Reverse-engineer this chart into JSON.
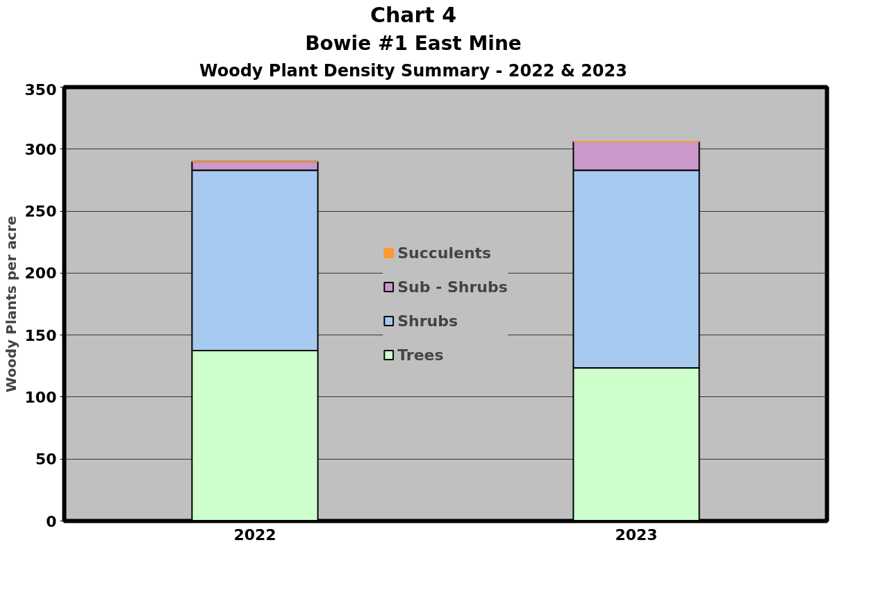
{
  "chart_data": {
    "type": "bar",
    "title": "Chart 4",
    "subtitle": "Bowie #1 East Mine\nWoody Plant Density Summary - 2022 & 2023",
    "ylabel": "Woody Plants per acre",
    "categories": [
      "2022",
      "2023"
    ],
    "stacked": true,
    "ylim": [
      0,
      350
    ],
    "yticks": [
      0,
      50,
      100,
      150,
      200,
      250,
      300,
      350
    ],
    "grid": "y",
    "legend": "center",
    "series": [
      {
        "name": "Trees",
        "color": "#ccffcc",
        "values": [
          137.5,
          123.5
        ]
      },
      {
        "name": "Shrubs",
        "color": "#a6caf0",
        "values": [
          145.5,
          159.5
        ]
      },
      {
        "name": "Sub - Shrubs",
        "color": "#cc99cc",
        "values": [
          7,
          23
        ]
      },
      {
        "name": "Succulents",
        "color": "#ff9933",
        "values": [
          0,
          0
        ]
      }
    ]
  }
}
